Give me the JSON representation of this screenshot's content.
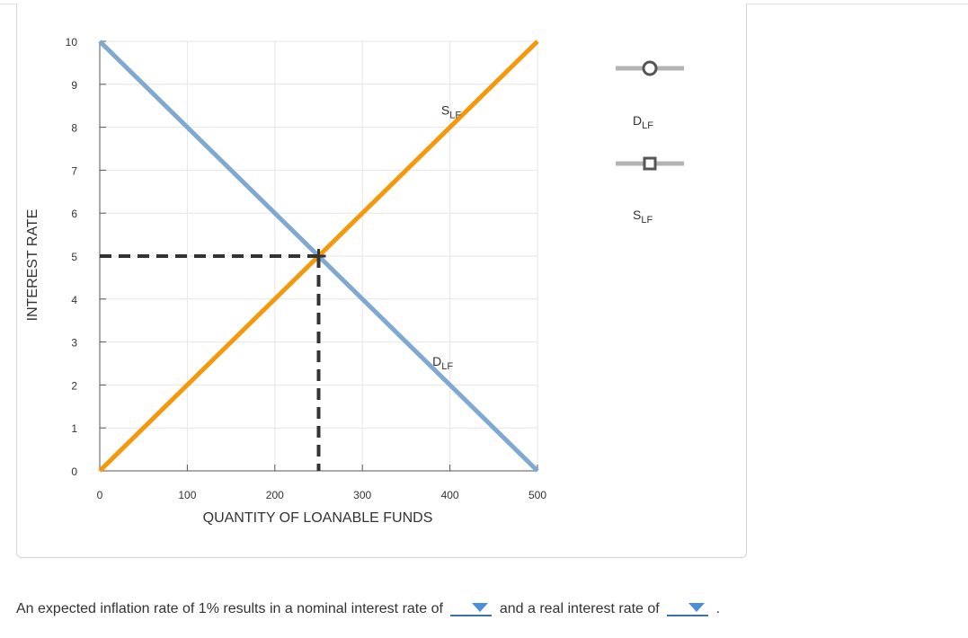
{
  "chart_data": {
    "type": "line",
    "xlabel": "QUANTITY OF LOANABLE FUNDS",
    "ylabel": "INTEREST RATE",
    "xlim": [
      0,
      500
    ],
    "ylim": [
      0,
      10
    ],
    "x_ticks": [
      "0",
      "100",
      "200",
      "300",
      "400",
      "500"
    ],
    "y_ticks": [
      "0",
      "1",
      "2",
      "3",
      "4",
      "5",
      "6",
      "7",
      "8",
      "9",
      "10"
    ],
    "grid": true,
    "series": [
      {
        "name": "D",
        "subscript": "LF",
        "color": "#7fa9d1",
        "points": [
          [
            0,
            10
          ],
          [
            500,
            0
          ]
        ]
      },
      {
        "name": "S",
        "subscript": "LF",
        "color": "#f5980b",
        "points": [
          [
            0,
            0
          ],
          [
            500,
            10
          ]
        ]
      }
    ],
    "equilibrium": {
      "x": 250,
      "y": 5,
      "color": "#333333"
    },
    "curve_labels": [
      {
        "series": 1,
        "text": "S",
        "sub": "LF",
        "at": [
          390,
          8.3
        ]
      },
      {
        "series": 0,
        "text": "D",
        "sub": "LF",
        "at": [
          380,
          2.45
        ]
      }
    ]
  },
  "legend": {
    "items": [
      {
        "icon": "circle-marker-icon",
        "label": "D",
        "sub": "LF"
      },
      {
        "icon": "square-marker-icon",
        "label": "S",
        "sub": "LF"
      }
    ],
    "line_color": "#b3b3b3",
    "marker_color": "#555555"
  },
  "question": {
    "text_before": "An expected inflation rate of 1% results in a nominal interest rate of",
    "text_middle": "and a real interest rate of",
    "text_after": "."
  }
}
